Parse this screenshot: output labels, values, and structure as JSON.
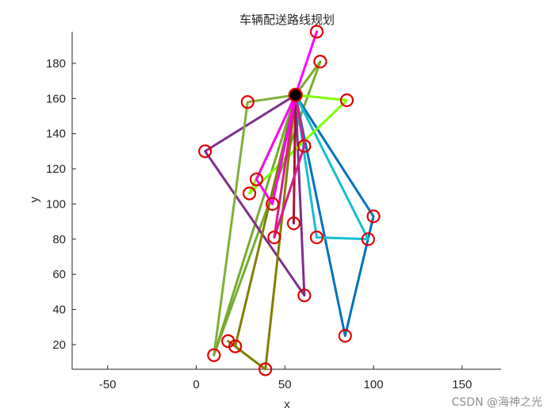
{
  "chart_data": {
    "type": "line",
    "title": "车辆配送路线规划",
    "xlabel": "x",
    "ylabel": "y",
    "xlim": [
      -70,
      172
    ],
    "ylim": [
      6,
      198
    ],
    "xticks": [
      -50,
      0,
      50,
      100,
      150
    ],
    "yticks": [
      20,
      40,
      60,
      80,
      100,
      120,
      140,
      160,
      180
    ],
    "grid": false,
    "legend": "none",
    "depot": {
      "x": 56,
      "y": 162,
      "color": "#000000"
    },
    "customers": [
      {
        "x": 68,
        "y": 198
      },
      {
        "x": 70,
        "y": 181
      },
      {
        "x": 29,
        "y": 158
      },
      {
        "x": 85,
        "y": 159
      },
      {
        "x": 5,
        "y": 130
      },
      {
        "x": 61,
        "y": 133
      },
      {
        "x": 34,
        "y": 114
      },
      {
        "x": 30,
        "y": 106
      },
      {
        "x": 43,
        "y": 100
      },
      {
        "x": 100,
        "y": 93
      },
      {
        "x": 55,
        "y": 89
      },
      {
        "x": 44,
        "y": 81
      },
      {
        "x": 68,
        "y": 81
      },
      {
        "x": 97,
        "y": 80
      },
      {
        "x": 61,
        "y": 48
      },
      {
        "x": 84,
        "y": 25
      },
      {
        "x": 18,
        "y": 22
      },
      {
        "x": 22,
        "y": 19
      },
      {
        "x": 10,
        "y": 14
      },
      {
        "x": 39,
        "y": 6
      }
    ],
    "series": [
      {
        "color": "#77ac30",
        "x": [
          56,
          70,
          10,
          56
        ],
        "y": [
          162,
          181,
          14,
          162
        ]
      },
      {
        "color": "#7e2f8e",
        "x": [
          56,
          5,
          61,
          56
        ],
        "y": [
          162,
          130,
          48,
          162
        ]
      },
      {
        "color": "#0072bd",
        "x": [
          56,
          100,
          84,
          56
        ],
        "y": [
          162,
          93,
          25,
          162
        ]
      },
      {
        "color": "#17becf",
        "x": [
          56,
          68,
          97,
          56
        ],
        "y": [
          162,
          81,
          80,
          162
        ]
      },
      {
        "color": "#80ff00",
        "x": [
          56,
          85,
          30,
          56
        ],
        "y": [
          162,
          159,
          106,
          162
        ]
      },
      {
        "color": "#808000",
        "x": [
          56,
          22,
          18,
          39,
          56
        ],
        "y": [
          162,
          19,
          22,
          6,
          162
        ]
      },
      {
        "color": "#7fb03c",
        "x": [
          56,
          29,
          10
        ],
        "y": [
          162,
          158,
          14
        ]
      },
      {
        "color": "#a2142f",
        "x": [
          56,
          55,
          56
        ],
        "y": [
          162,
          89,
          162
        ]
      },
      {
        "color": "#d81b8c",
        "x": [
          56,
          61,
          44,
          56
        ],
        "y": [
          162,
          133,
          81,
          162
        ]
      },
      {
        "color": "#ff00ff",
        "x": [
          56,
          68,
          56,
          34,
          43,
          56
        ],
        "y": [
          162,
          198,
          162,
          114,
          100,
          162
        ]
      }
    ]
  },
  "watermark": "CSDN @海神之光"
}
